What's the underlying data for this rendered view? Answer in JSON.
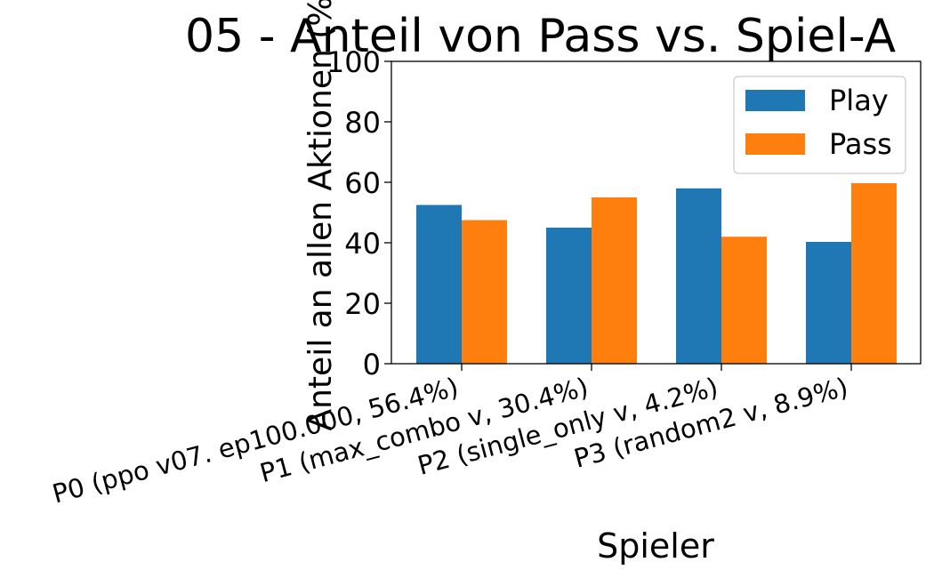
{
  "chart_data": {
    "type": "bar",
    "title": "05 - Anteil von Pass vs. Spiel-A",
    "xlabel": "Spieler",
    "ylabel": "Anteil an allen Aktionen (%",
    "ylim": [
      0,
      100
    ],
    "yticks": [
      "0",
      "20",
      "40",
      "60",
      "80",
      "100"
    ],
    "categories": [
      "P0 (ppo v07. ep100.000, 56.4%)",
      "P1 (max_combo v, 30.4%)",
      "P2 (single_only v, 4.2%)",
      "P3 (random2 v, 8.9%)"
    ],
    "series": [
      {
        "name": "Play",
        "color": "#1f77b4",
        "values": [
          52.5,
          45.0,
          58.0,
          40.3
        ]
      },
      {
        "name": "Pass",
        "color": "#ff7f0e",
        "values": [
          47.5,
          55.0,
          42.0,
          59.7
        ]
      }
    ],
    "legend": "top-right",
    "grid": false
  }
}
